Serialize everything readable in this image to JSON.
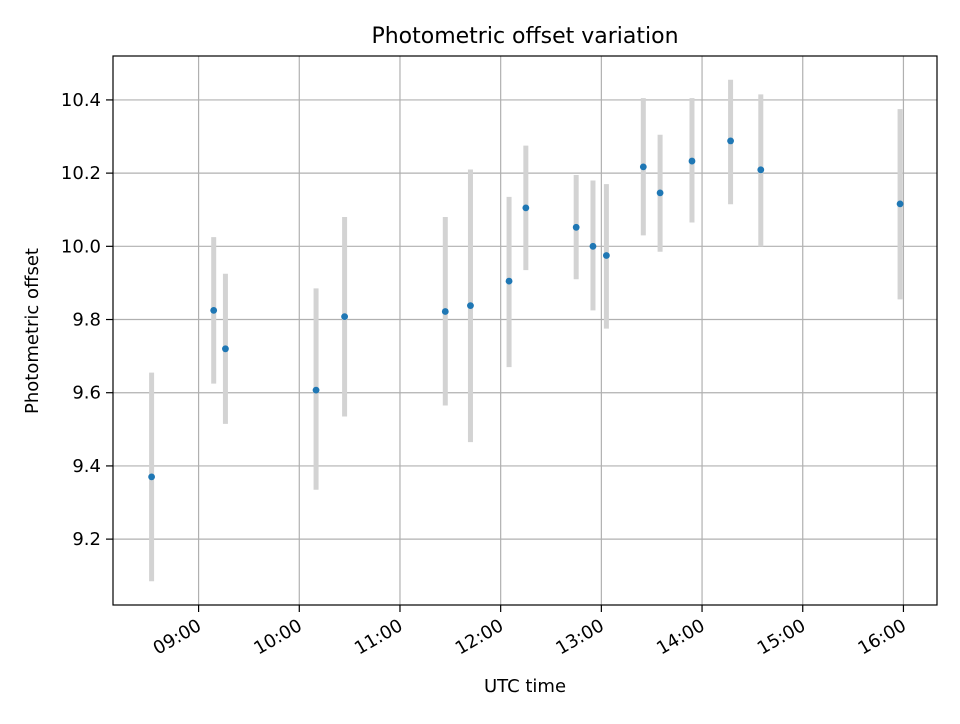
{
  "chart_data": {
    "type": "scatter",
    "title": "Photometric offset variation",
    "xlabel": "UTC time",
    "ylabel": "Photometric offset",
    "x_ticks": [
      "09:00",
      "10:00",
      "11:00",
      "12:00",
      "13:00",
      "14:00",
      "15:00",
      "16:00"
    ],
    "y_ticks": [
      "9.2",
      "9.4",
      "9.6",
      "9.8",
      "10.0",
      "10.2",
      "10.4"
    ],
    "xlim": [
      "08:09",
      "16:20"
    ],
    "ylim": [
      9.02,
      10.52
    ],
    "grid": true,
    "x": [
      "08:32",
      "09:09",
      "09:16",
      "10:10",
      "10:27",
      "11:27",
      "11:42",
      "12:05",
      "12:15",
      "12:45",
      "12:55",
      "13:03",
      "13:25",
      "13:35",
      "13:54",
      "14:17",
      "14:35",
      "15:58"
    ],
    "y": [
      9.37,
      9.825,
      9.72,
      9.607,
      9.808,
      9.822,
      9.838,
      9.905,
      10.105,
      10.052,
      10.0,
      9.975,
      10.217,
      10.146,
      10.233,
      10.288,
      10.209,
      10.116
    ],
    "yerr_low": [
      9.085,
      9.625,
      9.515,
      9.335,
      9.535,
      9.565,
      9.465,
      9.67,
      9.935,
      9.91,
      9.825,
      9.775,
      10.03,
      9.985,
      10.065,
      10.115,
      10.0,
      9.855
    ],
    "yerr_high": [
      9.655,
      10.025,
      9.925,
      9.885,
      10.08,
      10.08,
      10.21,
      10.135,
      10.275,
      10.195,
      10.18,
      10.17,
      10.405,
      10.305,
      10.405,
      10.455,
      10.415,
      10.375
    ],
    "colors": {
      "marker": "#1f77b4",
      "errorbar": "#d3d3d3",
      "grid": "#b0b0b0",
      "axes": "#000000"
    }
  }
}
